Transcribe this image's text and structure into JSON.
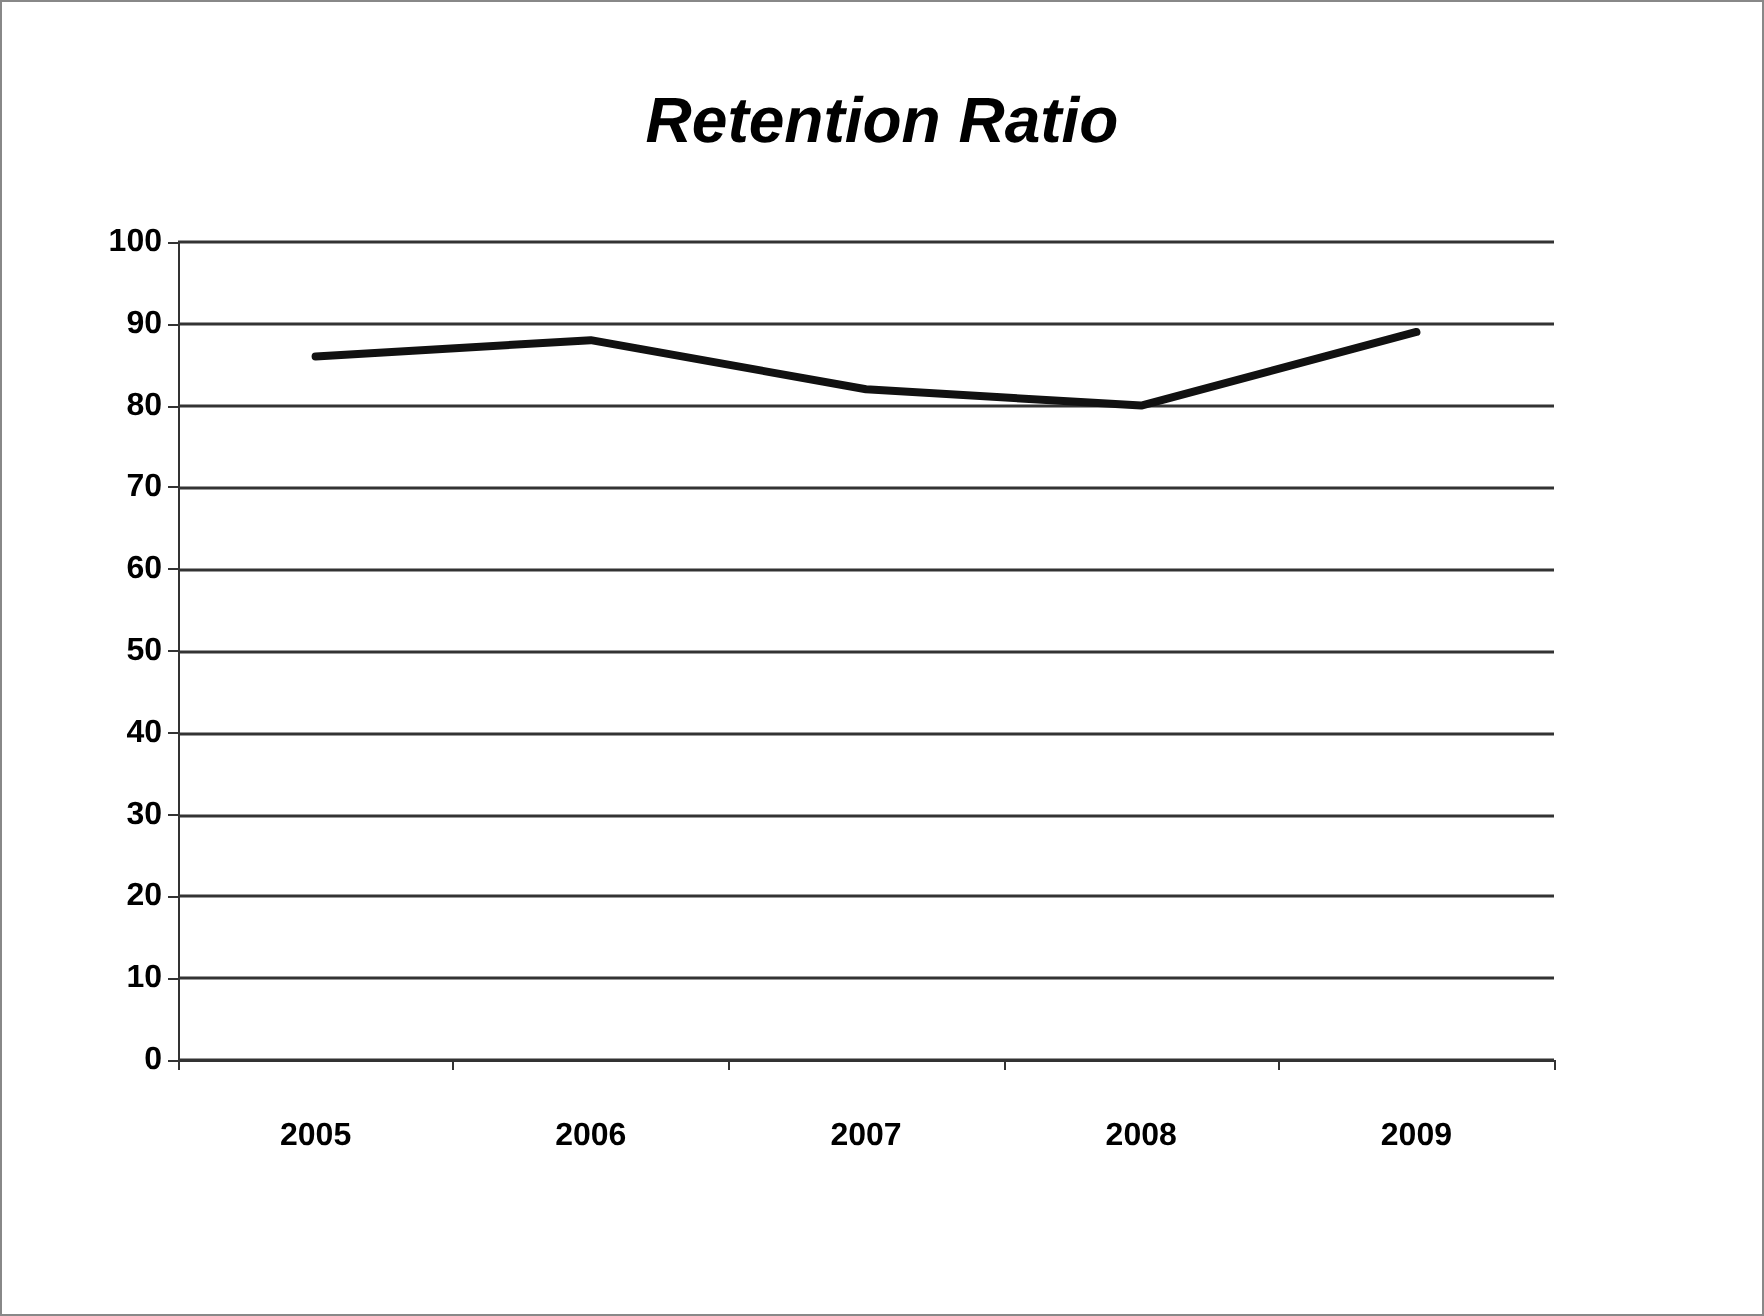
{
  "chart_data": {
    "type": "line",
    "title": "Retention Ratio",
    "categories": [
      "2005",
      "2006",
      "2007",
      "2008",
      "2009"
    ],
    "series": [
      {
        "color": "#111111",
        "values": [
          86,
          88,
          82,
          80,
          89
        ]
      }
    ],
    "ylim": [
      0,
      100
    ],
    "yticks": [
      0,
      10,
      20,
      30,
      40,
      50,
      60,
      70,
      80,
      90,
      100
    ],
    "grid": "y",
    "marker": "none",
    "line_style": "solid"
  }
}
